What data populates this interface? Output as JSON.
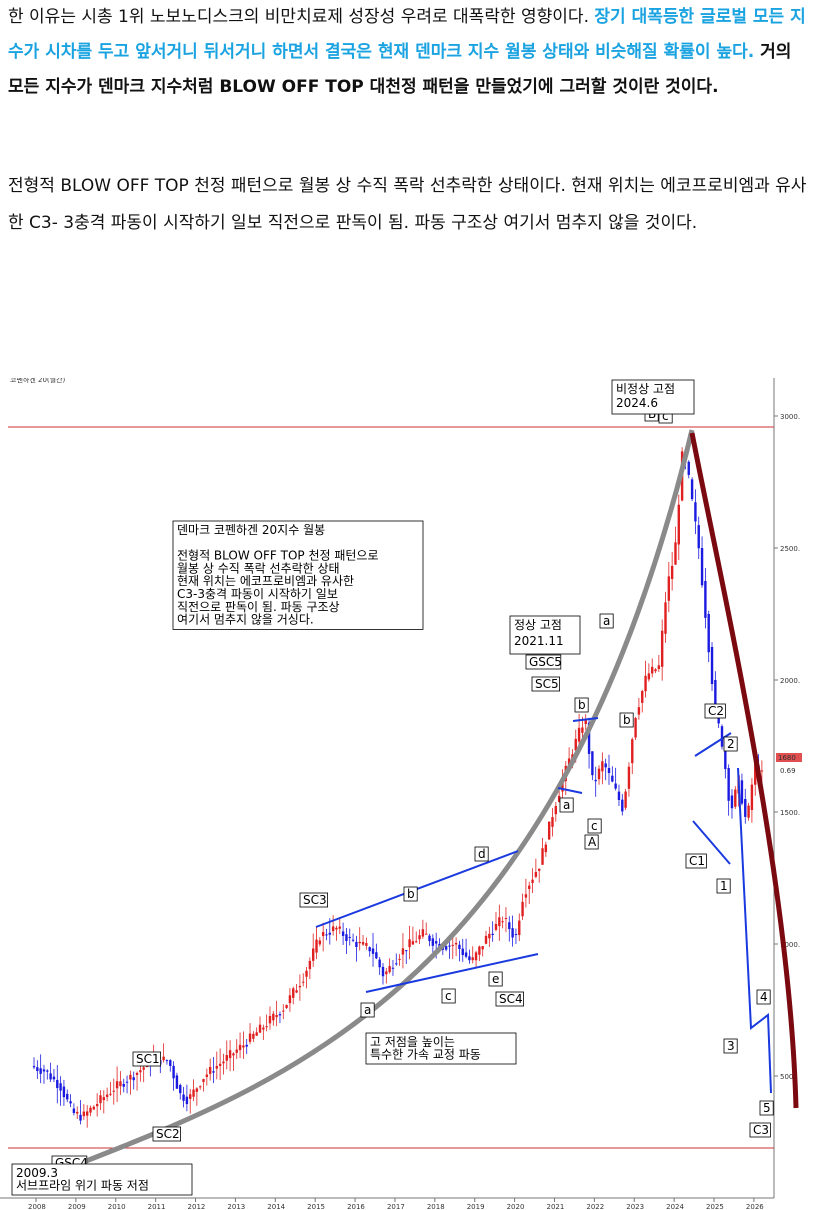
{
  "article": {
    "p1_a": "한 이유는 시총 1위 노보노디스크의 비만치료제 성장성 우려로 대폭락한 영향이다. ",
    "p1_b": "장기 대폭등한 글로벌 모든 지수가 시차를 두고 앞서거니 뒤서거니 하면서 결국은 현재 덴마크 지수 월봉 상태와 비슷해질 확률이 높다.",
    "p1_c": " 거의 모든 지수가 덴마크 지수처럼 BLOW OFF TOP 대천정 패턴을 만들었기에 그러할 것이란 것이다.",
    "p2": "전형적 BLOW OFF TOP 천정 패턴으로 월봉 상 수직 폭락 선추락한 상태이다. 현재 위치는 에코프로비엠과 유사한 C3- 3충격 파동이 시작하기 일보 직전으로 판독이 됨. 파동 구조상 여기서 멈추지 않을 것이다."
  },
  "chart_data": {
    "type": "candlestick",
    "legend": "코펜하겐 20(월간)",
    "x_ticks": [
      "2008",
      "2009",
      "2010",
      "2011",
      "2012",
      "2013",
      "2014",
      "2015",
      "2016",
      "2017",
      "2018",
      "2019",
      "2020",
      "2021",
      "2022",
      "2023",
      "2024",
      "2025",
      "2026"
    ],
    "y_ticks": [
      "3000.",
      "2500.",
      "2000.",
      "1500.",
      "1000.",
      "500."
    ],
    "ylim": [
      350,
      3100
    ],
    "price_tag": {
      "value": "1680",
      "change": "0.69"
    },
    "info_box": [
      "덴마크 코펜하겐 20지수 월봉",
      "",
      "전형적 BLOW OFF TOP 천정 패턴으로",
      "월봉 상 수직 폭락 선추락한 상태",
      "현재 위치는 에코프로비엠과 유사한",
      "C3-3충격 파동이 시작하기 일보",
      "직전으로 판독이 됨. 파동 구조상",
      "여기서 멈추지 않을 거싱다."
    ],
    "note_box": [
      "고 저점을 높이는",
      "특수한 가속 교정 파동"
    ],
    "bottom_box": [
      "2009.3",
      "서브프라임 위기 파동 저점"
    ],
    "top_box": [
      "비정상 고점",
      "2024.6"
    ],
    "mid_box": [
      "정상 고점",
      "2021.11"
    ],
    "wave_labels": [
      "SC1",
      "SC2",
      "SC3",
      "SC4",
      "SC5",
      "GSC4",
      "GSC5",
      "a",
      "b",
      "c",
      "d",
      "e",
      "A",
      "B",
      "C",
      "C1",
      "C2",
      "C3",
      "1",
      "2",
      "3",
      "4",
      "5"
    ],
    "colors": {
      "up": "#e02020",
      "down": "#1a1ae0",
      "arc": "#8a8a8a",
      "projection": "#7a0a10",
      "hline": "#c83030",
      "wave": "#1a3ae0"
    }
  }
}
